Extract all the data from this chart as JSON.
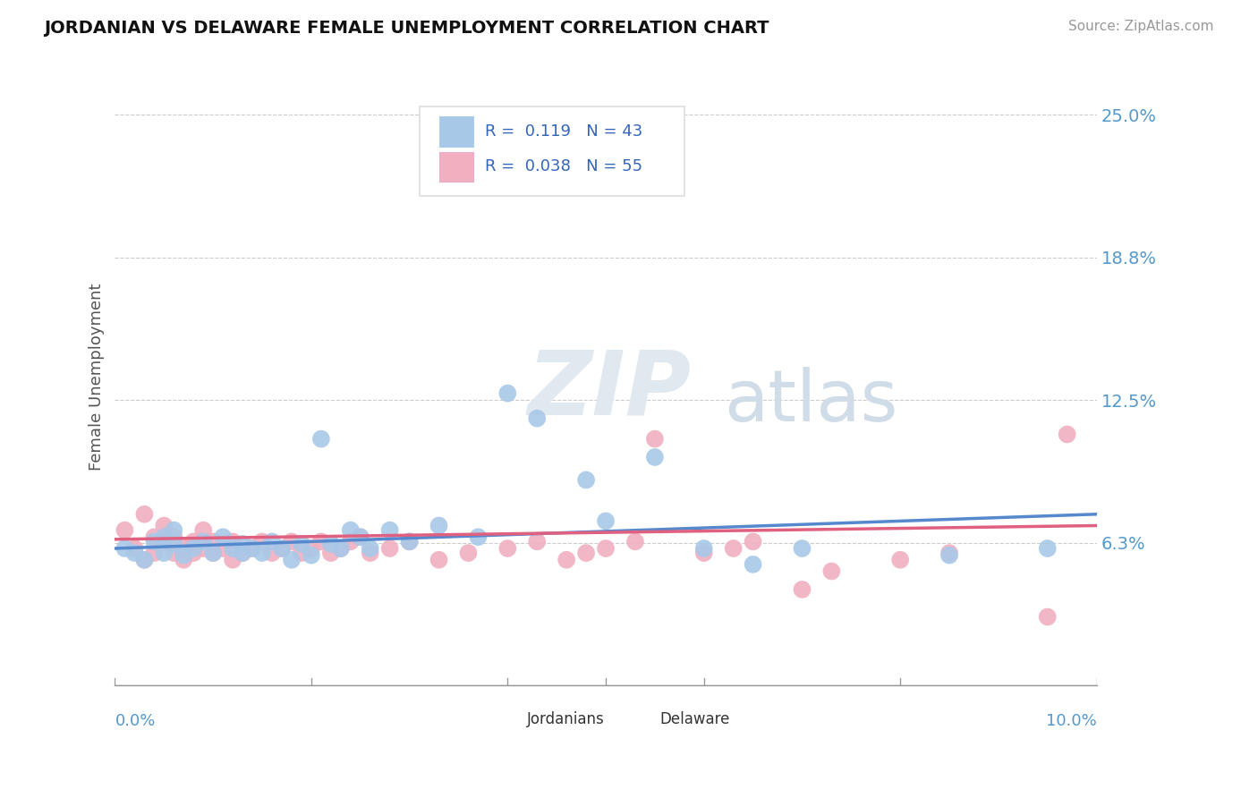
{
  "title": "JORDANIAN VS DELAWARE FEMALE UNEMPLOYMENT CORRELATION CHART",
  "source": "Source: ZipAtlas.com",
  "ylabel": "Female Unemployment",
  "ytick_vals": [
    0.0625,
    0.125,
    0.1875,
    0.25
  ],
  "ytick_labels": [
    "6.3%",
    "12.5%",
    "18.8%",
    "25.0%"
  ],
  "xlim": [
    0.0,
    0.1
  ],
  "ylim": [
    0.0,
    0.27
  ],
  "legend_r1": "R =  0.119",
  "legend_n1": "N = 43",
  "legend_r2": "R =  0.038",
  "legend_n2": "N = 55",
  "color_jordanians": "#a8c8e8",
  "color_delaware": "#f0b0c0",
  "color_line_jordanians": "#5588cc",
  "color_line_delaware": "#e06080",
  "background_color": "#ffffff",
  "jordanians_x": [
    0.001,
    0.002,
    0.003,
    0.004,
    0.005,
    0.005,
    0.006,
    0.006,
    0.007,
    0.008,
    0.009,
    0.01,
    0.011,
    0.012,
    0.013,
    0.013,
    0.014,
    0.015,
    0.016,
    0.017,
    0.018,
    0.019,
    0.02,
    0.021,
    0.022,
    0.023,
    0.024,
    0.025,
    0.026,
    0.028,
    0.03,
    0.033,
    0.037,
    0.04,
    0.043,
    0.048,
    0.05,
    0.055,
    0.06,
    0.065,
    0.07,
    0.085,
    0.095
  ],
  "jordanians_y": [
    0.06,
    0.058,
    0.055,
    0.063,
    0.065,
    0.058,
    0.062,
    0.068,
    0.057,
    0.06,
    0.063,
    0.058,
    0.065,
    0.06,
    0.058,
    0.062,
    0.06,
    0.058,
    0.063,
    0.06,
    0.055,
    0.062,
    0.057,
    0.108,
    0.062,
    0.06,
    0.068,
    0.065,
    0.06,
    0.068,
    0.063,
    0.07,
    0.065,
    0.128,
    0.117,
    0.09,
    0.072,
    0.1,
    0.06,
    0.053,
    0.06,
    0.057,
    0.06
  ],
  "delaware_x": [
    0.001,
    0.002,
    0.003,
    0.003,
    0.004,
    0.004,
    0.005,
    0.005,
    0.006,
    0.006,
    0.007,
    0.007,
    0.008,
    0.008,
    0.009,
    0.009,
    0.01,
    0.01,
    0.011,
    0.012,
    0.012,
    0.013,
    0.014,
    0.015,
    0.016,
    0.017,
    0.018,
    0.019,
    0.02,
    0.021,
    0.022,
    0.023,
    0.024,
    0.025,
    0.026,
    0.028,
    0.03,
    0.033,
    0.036,
    0.04,
    0.043,
    0.046,
    0.048,
    0.05,
    0.053,
    0.055,
    0.06,
    0.063,
    0.065,
    0.07,
    0.073,
    0.08,
    0.085,
    0.095,
    0.097
  ],
  "delaware_y": [
    0.068,
    0.06,
    0.055,
    0.075,
    0.058,
    0.065,
    0.063,
    0.07,
    0.058,
    0.065,
    0.055,
    0.06,
    0.058,
    0.063,
    0.06,
    0.068,
    0.058,
    0.063,
    0.06,
    0.055,
    0.063,
    0.058,
    0.06,
    0.063,
    0.058,
    0.06,
    0.063,
    0.058,
    0.06,
    0.063,
    0.058,
    0.06,
    0.063,
    0.065,
    0.058,
    0.06,
    0.063,
    0.055,
    0.058,
    0.06,
    0.063,
    0.055,
    0.058,
    0.06,
    0.063,
    0.108,
    0.058,
    0.06,
    0.063,
    0.042,
    0.05,
    0.055,
    0.058,
    0.03,
    0.11
  ],
  "trend_j_x0": 0.0,
  "trend_j_y0": 0.06,
  "trend_j_x1": 0.1,
  "trend_j_y1": 0.075,
  "trend_d_x0": 0.0,
  "trend_d_y0": 0.064,
  "trend_d_x1": 0.1,
  "trend_d_y1": 0.07
}
